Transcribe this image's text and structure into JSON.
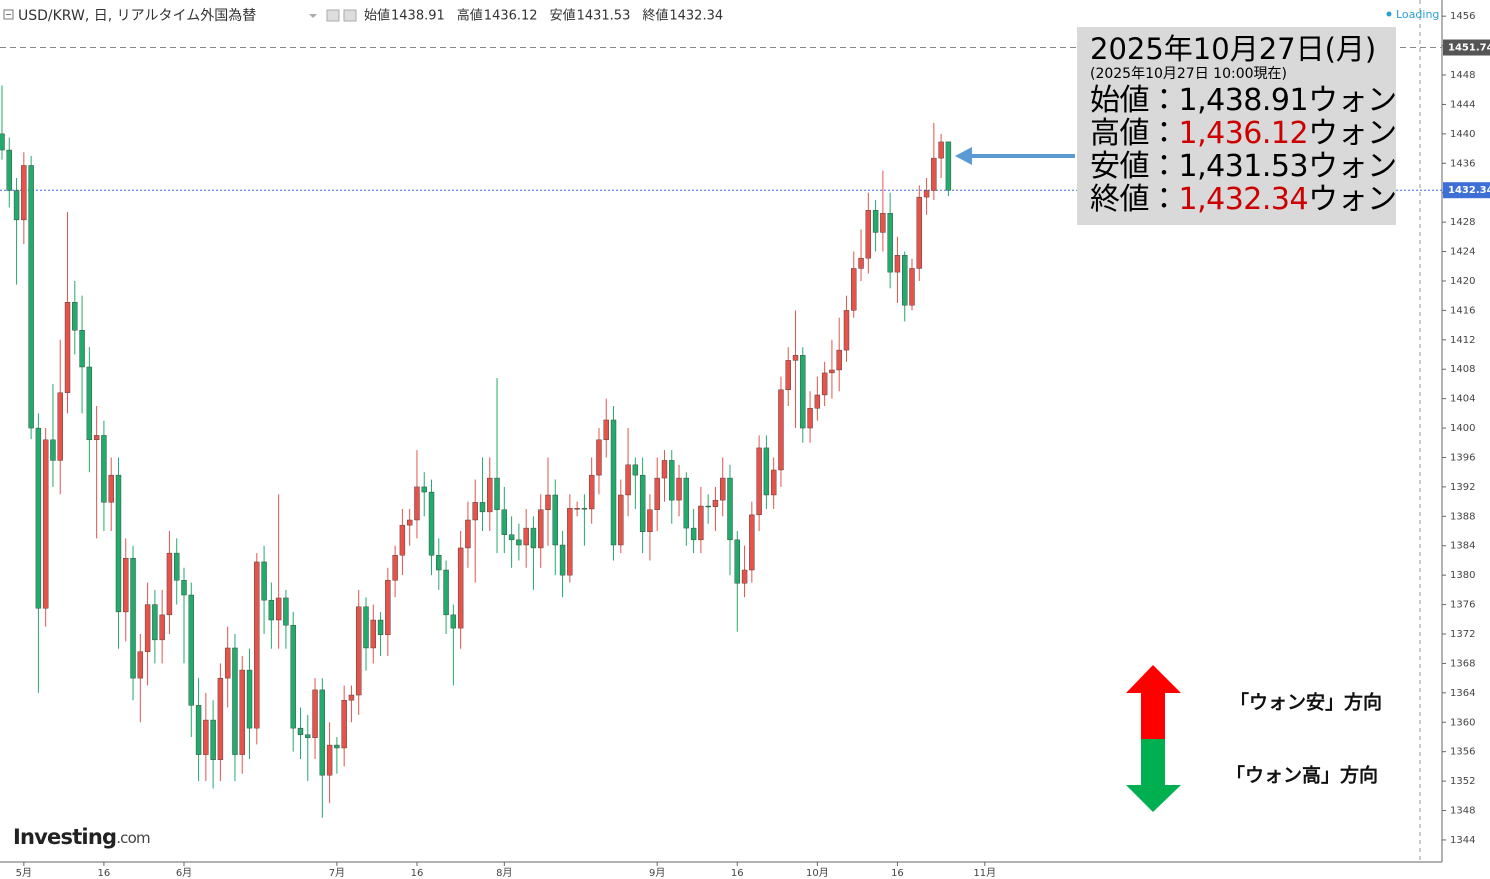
{
  "chart_data": {
    "type": "candlestick",
    "header": {
      "symbol": "USD/KRW, 日, リアルタイム外国為替",
      "labels": [
        "始値",
        "高値",
        "安値",
        "終値"
      ]
    },
    "loading": "Loading",
    "logo": {
      "brand": "Investing",
      "suffix": ".com"
    },
    "up_color": "#e5534b",
    "down_color": "#22ab6c",
    "ylim": [
      1341.0,
      1458.2
    ],
    "yticks": [
      1344,
      1348,
      1352,
      1356,
      1360,
      1364,
      1368,
      1372,
      1376,
      1380,
      1384,
      1388,
      1392,
      1396,
      1400,
      1404,
      1408,
      1412,
      1416,
      1420,
      1424,
      1428,
      1432,
      1436,
      1440,
      1444,
      1448,
      1452,
      1456
    ],
    "grid": false,
    "price_lines": [
      {
        "value": 1451.74,
        "color": "#555555",
        "line_color": "#888888",
        "dash": "6 4"
      },
      {
        "value": 1432.34,
        "color": "#3d6fd6",
        "line_color": "#3d6fd6",
        "dash": "2 2"
      }
    ],
    "categories": [
      null,
      null,
      null,
      "5月",
      null,
      null,
      null,
      null,
      null,
      null,
      null,
      null,
      null,
      null,
      "16",
      null,
      null,
      null,
      null,
      null,
      null,
      null,
      null,
      null,
      null,
      "6月",
      null,
      null,
      null,
      null,
      null,
      null,
      null,
      null,
      null,
      null,
      null,
      null,
      null,
      null,
      null,
      null,
      null,
      null,
      null,
      null,
      "7月",
      null,
      null,
      null,
      null,
      null,
      null,
      null,
      null,
      null,
      null,
      "16",
      null,
      null,
      null,
      null,
      null,
      null,
      null,
      null,
      null,
      null,
      null,
      "8月",
      null,
      null,
      null,
      null,
      null,
      null,
      null,
      null,
      null,
      null,
      null,
      null,
      null,
      null,
      null,
      null,
      null,
      null,
      null,
      null,
      "9月",
      null,
      null,
      null,
      null,
      null,
      null,
      null,
      null,
      null,
      null,
      "16",
      null,
      null,
      null,
      null,
      null,
      null,
      null,
      null,
      null,
      null,
      "10月",
      null,
      null,
      null,
      null,
      null,
      null,
      null,
      null,
      null,
      null,
      "16",
      null,
      null,
      null,
      null,
      null,
      null,
      null,
      null,
      null,
      null,
      null,
      "11月"
    ],
    "ohlc": [
      [
        1440.0,
        1446.6,
        1436.5,
        1437.8
      ],
      [
        1437.8,
        1439.5,
        1430.0,
        1432.3
      ],
      [
        1432.3,
        1434.0,
        1419.5,
        1428.3
      ],
      [
        1428.3,
        1437.5,
        1425.0,
        1435.7
      ],
      [
        1435.7,
        1437.0,
        1398.5,
        1400.0
      ],
      [
        1400.0,
        1402.0,
        1364.0,
        1375.5
      ],
      [
        1375.5,
        1400.0,
        1373.0,
        1398.4
      ],
      [
        1398.4,
        1406.0,
        1392.0,
        1395.6
      ],
      [
        1395.6,
        1412.0,
        1391.0,
        1404.8
      ],
      [
        1404.8,
        1429.4,
        1402.0,
        1417.1
      ],
      [
        1417.1,
        1420.0,
        1410.0,
        1413.3
      ],
      [
        1413.3,
        1418.0,
        1402.0,
        1408.3
      ],
      [
        1408.3,
        1411.0,
        1394.0,
        1398.4
      ],
      [
        1398.4,
        1403.0,
        1385.0,
        1399.0
      ],
      [
        1399.0,
        1401.0,
        1386.0,
        1389.9
      ],
      [
        1389.9,
        1396.0,
        1386.0,
        1393.6
      ],
      [
        1393.6,
        1396.0,
        1370.0,
        1375.0
      ],
      [
        1375.0,
        1385.0,
        1371.0,
        1382.3
      ],
      [
        1382.3,
        1384.0,
        1363.0,
        1366.0
      ],
      [
        1366.0,
        1372.0,
        1360.0,
        1369.6
      ],
      [
        1369.6,
        1379.0,
        1365.0,
        1376.0
      ],
      [
        1376.0,
        1378.0,
        1368.0,
        1371.2
      ],
      [
        1371.2,
        1378.0,
        1368.0,
        1374.6
      ],
      [
        1374.6,
        1386.0,
        1372.0,
        1383.0
      ],
      [
        1383.0,
        1385.0,
        1376.0,
        1379.3
      ],
      [
        1379.3,
        1381.0,
        1368.0,
        1377.3
      ],
      [
        1377.3,
        1379.0,
        1358.0,
        1362.3
      ],
      [
        1362.3,
        1366.0,
        1352.0,
        1355.6
      ],
      [
        1355.6,
        1364.0,
        1352.0,
        1360.3
      ],
      [
        1360.3,
        1363.0,
        1351.0,
        1354.9
      ],
      [
        1354.9,
        1368.0,
        1352.0,
        1366.0
      ],
      [
        1366.0,
        1373.0,
        1362.0,
        1370.1
      ],
      [
        1370.1,
        1372.0,
        1352.0,
        1355.6
      ],
      [
        1355.6,
        1369.0,
        1353.0,
        1367.1
      ],
      [
        1367.1,
        1370.0,
        1355.0,
        1359.2
      ],
      [
        1359.2,
        1383.0,
        1357.0,
        1381.8
      ],
      [
        1381.8,
        1384.0,
        1372.0,
        1376.6
      ],
      [
        1376.6,
        1379.0,
        1370.0,
        1373.9
      ],
      [
        1373.9,
        1391.0,
        1370.0,
        1376.9
      ],
      [
        1376.9,
        1378.0,
        1370.0,
        1373.2
      ],
      [
        1373.2,
        1375.0,
        1356.0,
        1359.2
      ],
      [
        1359.2,
        1362.0,
        1355.0,
        1358.3
      ],
      [
        1358.3,
        1361.0,
        1352.0,
        1357.9
      ],
      [
        1357.9,
        1366.0,
        1355.0,
        1364.4
      ],
      [
        1364.4,
        1366.0,
        1347.0,
        1352.8
      ],
      [
        1352.8,
        1360.0,
        1349.0,
        1356.9
      ],
      [
        1356.9,
        1358.0,
        1353.0,
        1356.5
      ],
      [
        1356.5,
        1365.0,
        1354.0,
        1363.0
      ],
      [
        1363.0,
        1365.0,
        1360.0,
        1363.7
      ],
      [
        1363.7,
        1378.0,
        1361.0,
        1375.7
      ],
      [
        1375.7,
        1377.0,
        1367.0,
        1370.1
      ],
      [
        1370.1,
        1376.0,
        1368.0,
        1373.9
      ],
      [
        1373.9,
        1375.0,
        1369.0,
        1371.9
      ],
      [
        1371.9,
        1381.0,
        1369.0,
        1379.3
      ],
      [
        1379.3,
        1384.0,
        1377.0,
        1382.7
      ],
      [
        1382.7,
        1389.0,
        1380.0,
        1386.8
      ],
      [
        1386.8,
        1389.0,
        1384.0,
        1387.5
      ],
      [
        1387.5,
        1397.0,
        1385.0,
        1392.0
      ],
      [
        1392.0,
        1394.0,
        1388.0,
        1391.3
      ],
      [
        1391.3,
        1393.0,
        1380.0,
        1382.7
      ],
      [
        1382.7,
        1385.0,
        1378.0,
        1380.7
      ],
      [
        1380.7,
        1382.0,
        1372.0,
        1374.6
      ],
      [
        1374.6,
        1376.0,
        1365.0,
        1372.8
      ],
      [
        1372.8,
        1386.0,
        1370.0,
        1383.7
      ],
      [
        1383.7,
        1390.0,
        1381.0,
        1387.5
      ],
      [
        1387.5,
        1393.0,
        1379.0,
        1389.9
      ],
      [
        1389.9,
        1396.0,
        1386.0,
        1388.6
      ],
      [
        1388.6,
        1396.0,
        1386.0,
        1393.2
      ],
      [
        1393.2,
        1406.8,
        1383.0,
        1388.9
      ],
      [
        1388.9,
        1392.0,
        1383.0,
        1385.5
      ],
      [
        1385.5,
        1388.0,
        1381.0,
        1384.8
      ],
      [
        1384.8,
        1387.0,
        1382.0,
        1384.1
      ],
      [
        1384.1,
        1389.0,
        1381.0,
        1386.4
      ],
      [
        1386.4,
        1388.0,
        1378.0,
        1383.7
      ],
      [
        1383.7,
        1391.0,
        1381.0,
        1388.9
      ],
      [
        1388.9,
        1396.0,
        1384.0,
        1390.9
      ],
      [
        1390.9,
        1393.0,
        1380.0,
        1384.1
      ],
      [
        1384.1,
        1386.0,
        1377.0,
        1380.0
      ],
      [
        1380.0,
        1391.0,
        1379.0,
        1389.1
      ],
      [
        1389.1,
        1390.0,
        1388.0,
        1389.1
      ],
      [
        1389.1,
        1391.0,
        1384.0,
        1389.0
      ],
      [
        1389.0,
        1396.0,
        1387.0,
        1393.6
      ],
      [
        1393.6,
        1400.0,
        1391.0,
        1398.4
      ],
      [
        1398.4,
        1404.0,
        1396.0,
        1401.1
      ],
      [
        1401.1,
        1403.0,
        1382.0,
        1384.1
      ],
      [
        1384.1,
        1393.0,
        1383.0,
        1390.9
      ],
      [
        1390.9,
        1400.0,
        1388.0,
        1395.0
      ],
      [
        1395.0,
        1396.0,
        1389.0,
        1393.6
      ],
      [
        1393.6,
        1396.0,
        1383.0,
        1385.9
      ],
      [
        1385.9,
        1391.0,
        1382.0,
        1388.9
      ],
      [
        1388.9,
        1396.0,
        1386.0,
        1393.2
      ],
      [
        1393.2,
        1397.0,
        1390.0,
        1395.6
      ],
      [
        1395.6,
        1397.0,
        1387.0,
        1390.2
      ],
      [
        1390.2,
        1395.0,
        1388.0,
        1393.2
      ],
      [
        1393.2,
        1394.0,
        1384.0,
        1386.4
      ],
      [
        1386.4,
        1389.0,
        1383.0,
        1384.8
      ],
      [
        1384.8,
        1392.0,
        1383.0,
        1389.4
      ],
      [
        1389.4,
        1391.0,
        1387.0,
        1389.3
      ],
      [
        1389.3,
        1392.0,
        1386.0,
        1390.2
      ],
      [
        1390.2,
        1396.0,
        1388.0,
        1393.2
      ],
      [
        1393.2,
        1395.0,
        1380.0,
        1384.8
      ],
      [
        1384.8,
        1386.0,
        1372.3,
        1378.9
      ],
      [
        1378.9,
        1384.0,
        1377.0,
        1380.7
      ],
      [
        1380.7,
        1390.0,
        1379.0,
        1388.2
      ],
      [
        1388.2,
        1399.0,
        1386.0,
        1397.3
      ],
      [
        1397.3,
        1399.0,
        1389.0,
        1390.9
      ],
      [
        1390.9,
        1396.0,
        1389.0,
        1394.3
      ],
      [
        1394.3,
        1407.0,
        1392.0,
        1405.2
      ],
      [
        1405.2,
        1411.0,
        1403.0,
        1409.2
      ],
      [
        1409.2,
        1416.0,
        1400.0,
        1409.9
      ],
      [
        1409.9,
        1411.0,
        1398.0,
        1400.0
      ],
      [
        1400.0,
        1405.0,
        1398.0,
        1402.7
      ],
      [
        1402.7,
        1407.0,
        1401.0,
        1404.5
      ],
      [
        1404.5,
        1409.0,
        1403.0,
        1407.5
      ],
      [
        1407.5,
        1412.0,
        1404.0,
        1407.9
      ],
      [
        1407.9,
        1415.0,
        1405.0,
        1410.6
      ],
      [
        1410.6,
        1418.0,
        1409.0,
        1416.0
      ],
      [
        1416.0,
        1424.0,
        1415.0,
        1421.7
      ],
      [
        1421.7,
        1427.0,
        1420.0,
        1423.1
      ],
      [
        1423.1,
        1432.0,
        1421.0,
        1429.6
      ],
      [
        1429.6,
        1431.0,
        1424.0,
        1426.6
      ],
      [
        1426.6,
        1435.0,
        1424.0,
        1429.2
      ],
      [
        1429.2,
        1432.0,
        1419.0,
        1421.2
      ],
      [
        1421.2,
        1426.0,
        1417.0,
        1423.5
      ],
      [
        1423.5,
        1424.0,
        1414.5,
        1416.7
      ],
      [
        1416.7,
        1423.0,
        1416.0,
        1421.7
      ],
      [
        1421.7,
        1433.0,
        1420.0,
        1431.4
      ],
      [
        1431.4,
        1434.0,
        1429.0,
        1432.3
      ],
      [
        1432.3,
        1441.5,
        1431.0,
        1436.7
      ],
      [
        1436.7,
        1440.0,
        1434.0,
        1438.9
      ],
      [
        1438.91,
        1436.12,
        1431.53,
        1432.34
      ],
      null,
      null,
      null,
      null,
      null
    ],
    "annotation": {
      "date": "2025年10月27日(月)",
      "asof": "(2025年10月27日 10:00現在)",
      "rows": [
        {
          "label": "始値：",
          "value": "1,438.91",
          "unit": "ウォン",
          "color": "#000000"
        },
        {
          "label": "高値：",
          "value": "1,436.12",
          "unit": "ウォン",
          "color": "#cc0000"
        },
        {
          "label": "安値：",
          "value": "1,431.53",
          "unit": "ウォン",
          "color": "#000000"
        },
        {
          "label": "終値：",
          "value": "1,432.34",
          "unit": "ウォン",
          "color": "#cc0000"
        }
      ]
    },
    "direction_legend": [
      {
        "text": "「ウォン安」方向",
        "color": "#ff0000"
      },
      {
        "text": "「ウォン高」方向",
        "color": "#00b050"
      }
    ]
  }
}
